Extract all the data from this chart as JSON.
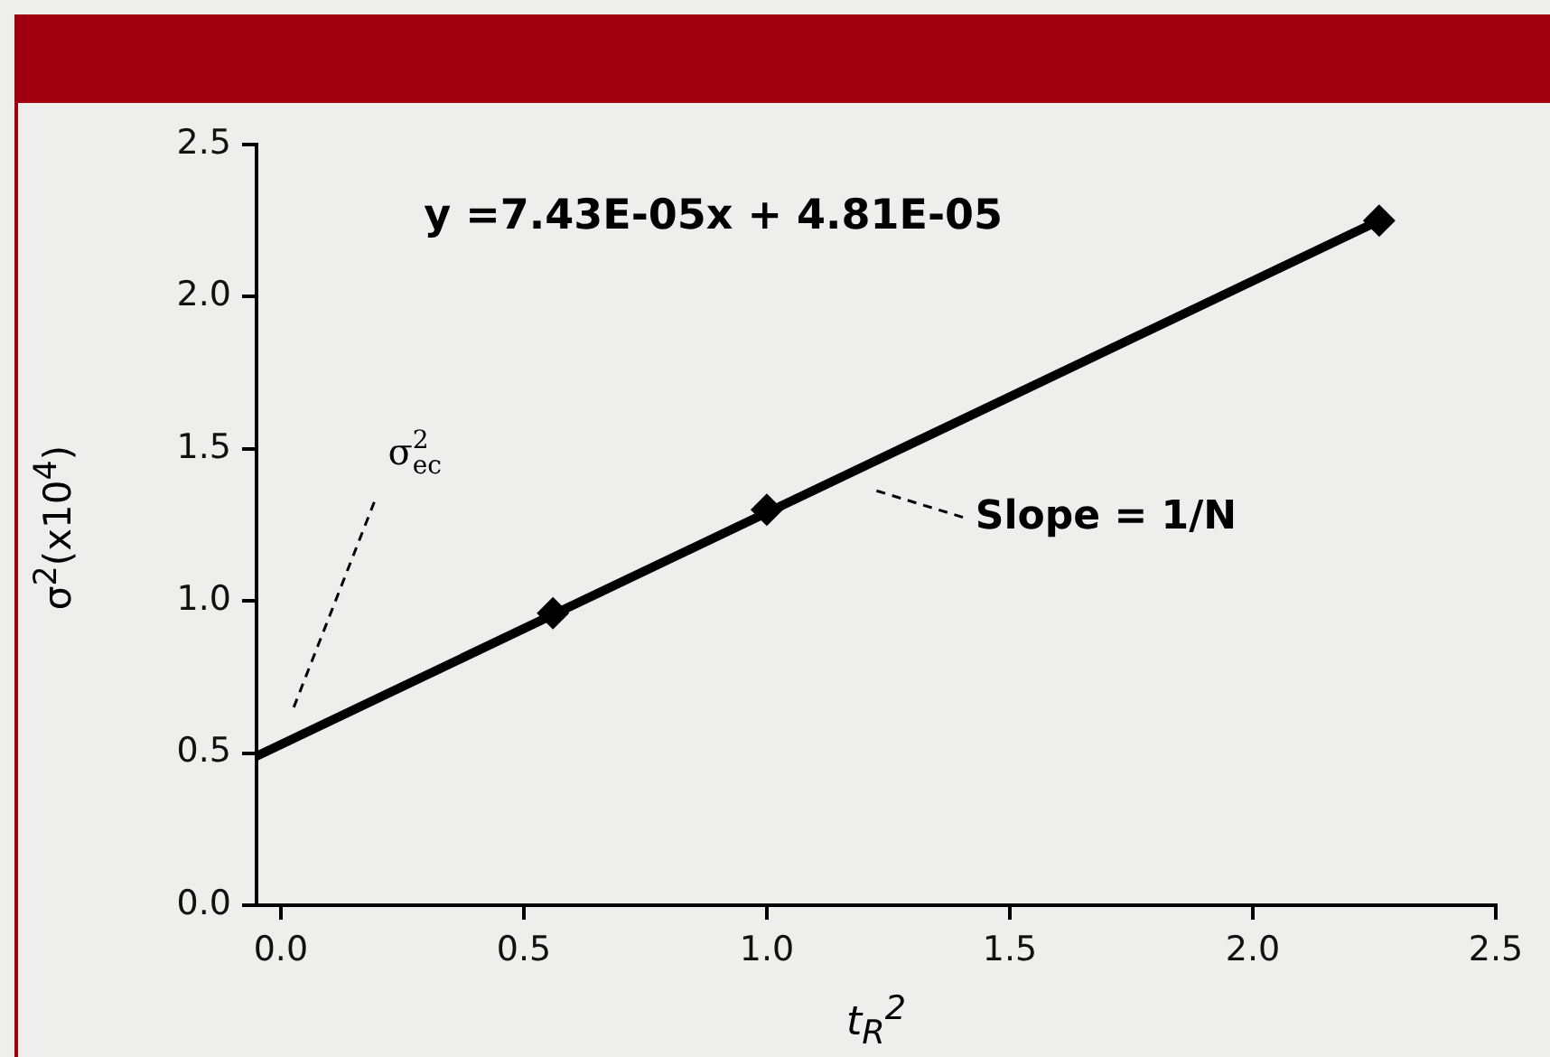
{
  "chart_data": {
    "type": "scatter",
    "xlabel": "t$_{R}$$^{2}$",
    "ylabel": "σ$^{2}$(x10$^{4}$)",
    "xlim": [
      -0.05,
      2.5
    ],
    "ylim": [
      0,
      2.5
    ],
    "xticks": [
      {
        "value": 0,
        "label": "0.0"
      },
      {
        "value": 0.5,
        "label": "0.5"
      },
      {
        "value": 1,
        "label": "1.0"
      },
      {
        "value": 1.5,
        "label": "1.5"
      },
      {
        "value": 2,
        "label": "2.0"
      },
      {
        "value": 2.5,
        "label": "2.5"
      }
    ],
    "yticks": [
      {
        "value": 0,
        "label": "0.0"
      },
      {
        "value": 0.5,
        "label": "0.5"
      },
      {
        "value": 1,
        "label": "1.0"
      },
      {
        "value": 1.5,
        "label": "1.5"
      },
      {
        "value": 2,
        "label": "2.0"
      },
      {
        "value": 2.5,
        "label": "2.5"
      }
    ],
    "grid": false,
    "marker": "diamond",
    "series": [
      {
        "type": "line",
        "color": "#000000",
        "x": [
          -0.05,
          2.26
        ],
        "values": [
          0.49,
          2.25
        ],
        "marker": "none"
      },
      {
        "color": "#000000",
        "x": [
          0.56,
          1.0,
          2.26
        ],
        "values": [
          0.96,
          1.3,
          2.25
        ]
      }
    ],
    "annotations": [
      "y =7.43E-05x + 4.81E-05",
      "σ$_{ec}$$^{2}$",
      "Slope = 1/N"
    ]
  }
}
